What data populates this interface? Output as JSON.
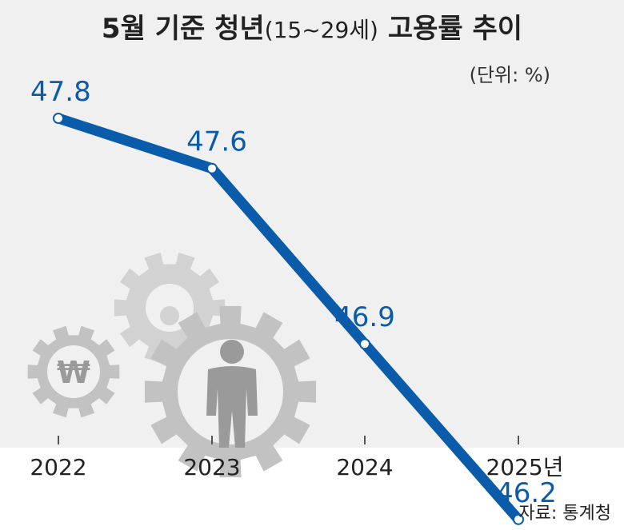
{
  "title": {
    "main": "5월 기준 청년",
    "paren": "(15~29세)",
    "suffix": "고용률 추이"
  },
  "unit_label": "(단위: %)",
  "source_label": "자료: 통계청",
  "colors": {
    "line": "#0a5cab",
    "label": "#0a5cab",
    "gear": "#c2c2c2",
    "gear_dark": "#9a9a9a",
    "background": "#f0f0f0"
  },
  "icons": [
    "won-gear-icon",
    "gear-icon",
    "person-gear-icon"
  ],
  "chart_data": {
    "type": "line",
    "title": "5월 기준 청년(15~29세) 고용률 추이",
    "x": [
      "2022",
      "2023",
      "2024",
      "2025년"
    ],
    "series": [
      {
        "values": [
          47.8,
          47.6,
          46.9,
          46.2
        ]
      }
    ],
    "data_labels": [
      "47.8",
      "47.6",
      "46.9",
      "46.2"
    ],
    "ylabel": "(단위: %)",
    "grid": false,
    "legend": "none"
  }
}
